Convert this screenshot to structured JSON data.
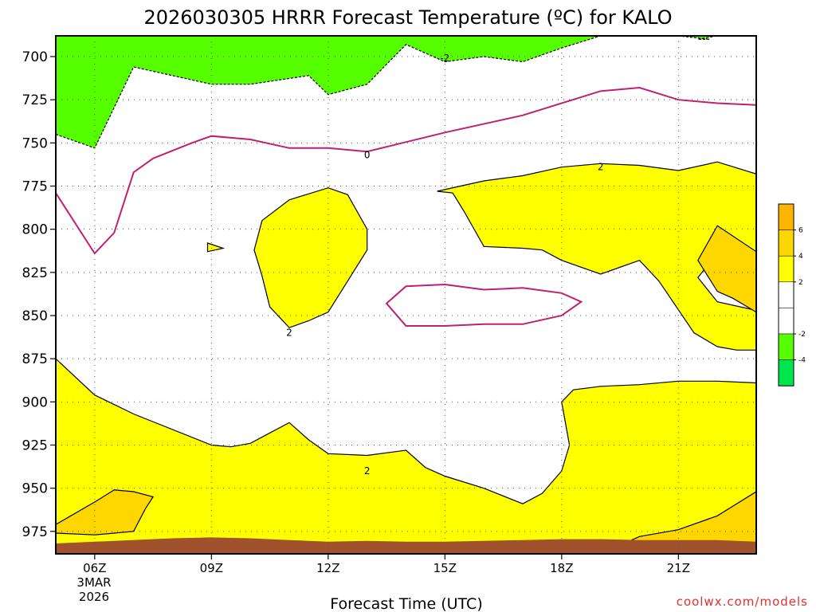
{
  "chart_data": {
    "type": "heatmap",
    "title": "2026030305 HRRR Forecast Temperature (ºC) for KALO",
    "xlabel": "Forecast Time (UTC)",
    "ylabel": "",
    "x_ticks": [
      "06Z",
      "09Z",
      "12Z",
      "15Z",
      "18Z",
      "21Z"
    ],
    "x_date_lines": [
      "3MAR",
      "2026"
    ],
    "x_range_hours": [
      5,
      23
    ],
    "y_ticks": [
      "700",
      "725",
      "750",
      "775",
      "800",
      "825",
      "850",
      "875",
      "900",
      "925",
      "950",
      "975"
    ],
    "y_range": [
      688,
      988
    ],
    "y_scale": "pressure-inverted",
    "grid": "dotted",
    "colorbar": {
      "placement": "right",
      "labels": [
        "6",
        "4",
        "2",
        "-2",
        "-4"
      ],
      "colors": [
        "#ffb400",
        "#ffd700",
        "#ffff00",
        "#ffffff",
        "#ffffff",
        "#55ff00",
        "#00e64d"
      ]
    },
    "fill_colors": {
      "above_2": "#ffff00",
      "above_4": "#ffd700",
      "below_minus_2": "#55ff00",
      "zero_line": "#c0206e",
      "terrain": "#a0522d"
    },
    "contour_labels": [
      {
        "text": "-2",
        "hour": 15.0,
        "p": 701
      },
      {
        "text": "0",
        "hour": 13.0,
        "p": 757
      },
      {
        "text": "2",
        "hour": 19.0,
        "p": 764
      },
      {
        "text": "2",
        "hour": 11.0,
        "p": 860
      },
      {
        "text": "2",
        "hour": 13.0,
        "p": 940
      }
    ],
    "regions": {
      "green_top": [
        [
          5,
          745
        ],
        [
          6,
          753
        ],
        [
          7,
          706
        ],
        [
          9,
          716
        ],
        [
          10,
          716
        ],
        [
          11.5,
          711
        ],
        [
          12,
          722
        ],
        [
          13,
          716
        ],
        [
          14,
          693
        ],
        [
          15,
          703
        ],
        [
          16,
          700
        ],
        [
          17,
          703
        ],
        [
          18,
          695
        ],
        [
          19,
          688
        ],
        [
          5,
          688
        ]
      ],
      "green_top_right": [
        [
          21,
          688
        ],
        [
          22,
          688
        ],
        [
          21.5,
          690
        ],
        [
          21.8,
          690
        ]
      ],
      "yellow_upper_right": [
        [
          14.8,
          778
        ],
        [
          16,
          772
        ],
        [
          17,
          769
        ],
        [
          18,
          764
        ],
        [
          19,
          762
        ],
        [
          20,
          763
        ],
        [
          21,
          766
        ],
        [
          22,
          761
        ],
        [
          23,
          768
        ],
        [
          23,
          835
        ],
        [
          22.6,
          822
        ],
        [
          22,
          814
        ],
        [
          21.5,
          828
        ],
        [
          22,
          842
        ],
        [
          23,
          847
        ],
        [
          23,
          870
        ],
        [
          22.5,
          870
        ],
        [
          22,
          868
        ],
        [
          21.4,
          860
        ],
        [
          20.5,
          830
        ],
        [
          20,
          818
        ],
        [
          19,
          826
        ],
        [
          18,
          818
        ],
        [
          17.5,
          812
        ],
        [
          17,
          811
        ],
        [
          16,
          810
        ],
        [
          15.5,
          790
        ],
        [
          15.2,
          779
        ]
      ],
      "orange_right": [
        [
          22,
          798
        ],
        [
          23,
          813
        ],
        [
          23,
          848
        ],
        [
          22.4,
          840
        ],
        [
          22,
          836
        ],
        [
          21.5,
          818
        ]
      ],
      "yellow_mid_blob": [
        [
          11,
          783
        ],
        [
          12,
          776
        ],
        [
          12.5,
          780
        ],
        [
          13,
          800
        ],
        [
          13,
          812
        ],
        [
          12.5,
          830
        ],
        [
          12,
          848
        ],
        [
          11.5,
          853
        ],
        [
          11,
          857
        ],
        [
          10.5,
          845
        ],
        [
          10.3,
          827
        ],
        [
          10.1,
          812
        ],
        [
          10.3,
          795
        ]
      ],
      "yellow_small_blob": [
        [
          8.9,
          808
        ],
        [
          9.3,
          811
        ],
        [
          8.9,
          813
        ]
      ],
      "yellow_bottom": [
        [
          5,
          875
        ],
        [
          6,
          896
        ],
        [
          7,
          907
        ],
        [
          9,
          925
        ],
        [
          9.5,
          926
        ],
        [
          10,
          924
        ],
        [
          11,
          912
        ],
        [
          11.5,
          922
        ],
        [
          12,
          930
        ],
        [
          13,
          931
        ],
        [
          14,
          928
        ],
        [
          14.5,
          938
        ],
        [
          15,
          943
        ],
        [
          16,
          950
        ],
        [
          17,
          959
        ],
        [
          17.5,
          953
        ],
        [
          18,
          940
        ],
        [
          18.2,
          925
        ],
        [
          18,
          900
        ],
        [
          18.3,
          893
        ],
        [
          19,
          891
        ],
        [
          20,
          890
        ],
        [
          21,
          888
        ],
        [
          22,
          888
        ],
        [
          23,
          889
        ],
        [
          23,
          988
        ],
        [
          5,
          988
        ]
      ],
      "orange_left": [
        [
          5,
          971
        ],
        [
          6,
          958
        ],
        [
          6.5,
          951
        ],
        [
          7,
          952
        ],
        [
          7.5,
          955
        ],
        [
          7.3,
          962
        ],
        [
          7,
          975
        ],
        [
          6,
          977
        ],
        [
          5,
          976
        ]
      ],
      "orange_bottom_right": [
        [
          19,
          988
        ],
        [
          19.5,
          983
        ],
        [
          20,
          978
        ],
        [
          21,
          974
        ],
        [
          22,
          966
        ],
        [
          23,
          952
        ],
        [
          23,
          988
        ]
      ],
      "zero_contour_main": [
        [
          5,
          779
        ],
        [
          6,
          814
        ],
        [
          6.5,
          802
        ],
        [
          7,
          767
        ],
        [
          7.5,
          759
        ],
        [
          8.5,
          750
        ],
        [
          9,
          746
        ],
        [
          10,
          748
        ],
        [
          11,
          753
        ],
        [
          12,
          753
        ],
        [
          13,
          755
        ],
        [
          15,
          744
        ],
        [
          17,
          734
        ],
        [
          19,
          720
        ],
        [
          20,
          718
        ],
        [
          21,
          725
        ],
        [
          22,
          727
        ],
        [
          23,
          728
        ]
      ],
      "zero_contour_loop": [
        [
          13.5,
          843
        ],
        [
          14,
          833
        ],
        [
          15,
          832
        ],
        [
          16,
          835
        ],
        [
          17,
          834
        ],
        [
          18,
          837
        ],
        [
          18.5,
          842
        ],
        [
          18,
          850
        ],
        [
          17,
          855
        ],
        [
          16,
          855
        ],
        [
          15,
          856
        ],
        [
          14,
          856
        ]
      ],
      "terrain": [
        [
          5,
          982
        ],
        [
          6,
          981
        ],
        [
          8,
          979
        ],
        [
          9,
          978.5
        ],
        [
          10,
          979
        ],
        [
          11,
          980
        ],
        [
          12,
          981
        ],
        [
          13,
          980.5
        ],
        [
          14,
          981
        ],
        [
          15,
          981
        ],
        [
          17,
          980
        ],
        [
          18,
          979.5
        ],
        [
          19,
          979.5
        ],
        [
          20,
          980
        ],
        [
          21,
          980
        ],
        [
          22,
          980
        ],
        [
          23,
          981
        ],
        [
          23,
          988
        ],
        [
          5,
          988
        ]
      ]
    }
  },
  "credit": "coolwx.com/models"
}
